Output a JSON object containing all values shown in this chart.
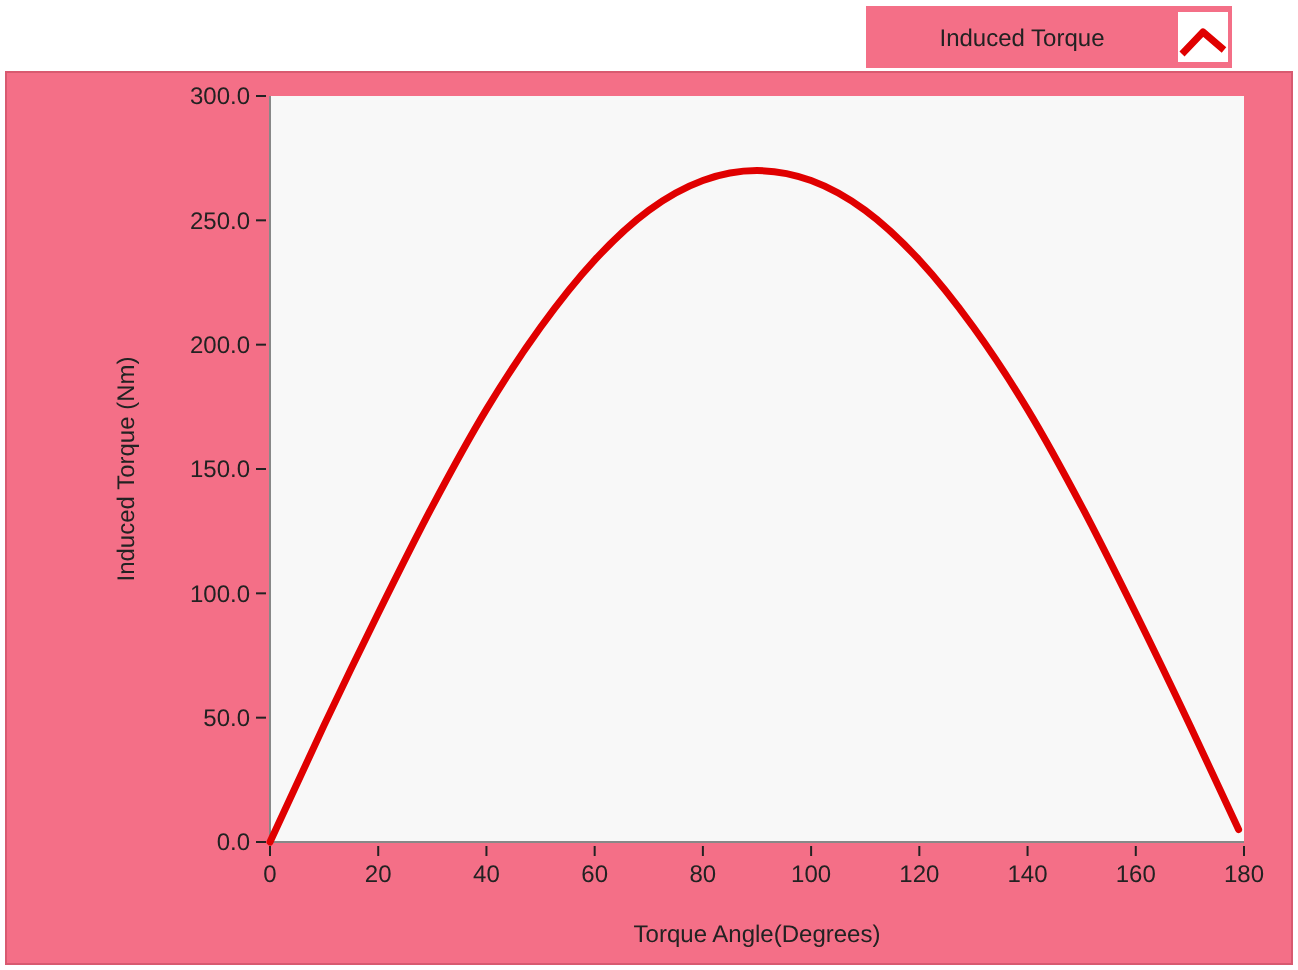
{
  "chart_data": {
    "type": "line",
    "xlabel": "Torque Angle(Degrees)",
    "ylabel": "Induced Torque (Nm)",
    "x": [
      0,
      10,
      20,
      30,
      40,
      50,
      60,
      70,
      80,
      90,
      100,
      110,
      120,
      130,
      140,
      150,
      160,
      170,
      179
    ],
    "series": [
      {
        "name": "Induced Torque",
        "color": "#e00000",
        "values": [
          0,
          47,
          92,
          135,
          174,
          207,
          234,
          254,
          266,
          270,
          266,
          254,
          234,
          207,
          174,
          135,
          92,
          47,
          5
        ]
      }
    ],
    "xlim": [
      0,
      180
    ],
    "xticks": [
      0,
      20,
      40,
      60,
      80,
      100,
      120,
      140,
      160,
      180
    ],
    "ylim": [
      0,
      300
    ],
    "yticks": [
      {
        "value": 0,
        "label": "0.0"
      },
      {
        "value": 50,
        "label": "50.0"
      },
      {
        "value": 100,
        "label": "100.0"
      },
      {
        "value": 150,
        "label": "150.0"
      },
      {
        "value": 200,
        "label": "200.0"
      },
      {
        "value": 250,
        "label": "250.0"
      },
      {
        "value": 300,
        "label": "300.0"
      }
    ],
    "grid": false,
    "legend": "top right",
    "line_style": "solid",
    "marker": "none"
  }
}
